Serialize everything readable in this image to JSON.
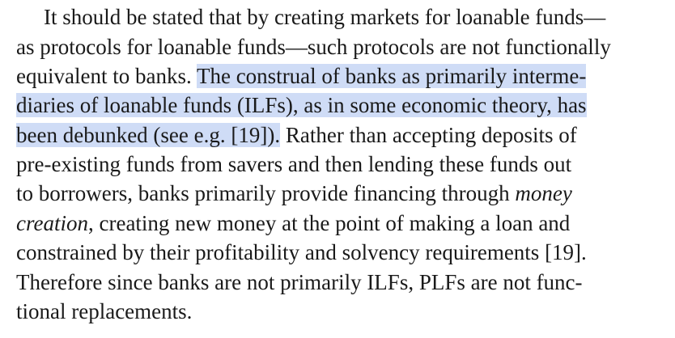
{
  "paragraph": {
    "line1": "It should be stated that by creating markets for loanable funds—",
    "line2": "as protocols for loanable funds—such protocols are not functionally",
    "line3_plain": "equivalent to banks. ",
    "line3_highlight": "The construal of banks as primarily interme-",
    "line4_highlight": "diaries of loanable funds (ILFs), as in some economic theory, has",
    "line5_highlight": "been debunked (see e.g. [19]).",
    "line5_plain": " Rather than accepting deposits of",
    "line6": "pre-existing funds from savers and then lending these funds out",
    "line7_plain": "to borrowers, banks primarily provide financing through ",
    "line7_italic": "money",
    "line8_italic": "creation",
    "line8_plain": ", creating new money at the point of making a loan and",
    "line9": "constrained by their profitability and solvency requirements [19].",
    "line10": "Therefore since banks are not primarily ILFs, PLFs are not func-",
    "line11": "tional replacements."
  },
  "colors": {
    "text": "#1a1a1a",
    "highlight": "#cfdcf6",
    "background": "#ffffff"
  }
}
